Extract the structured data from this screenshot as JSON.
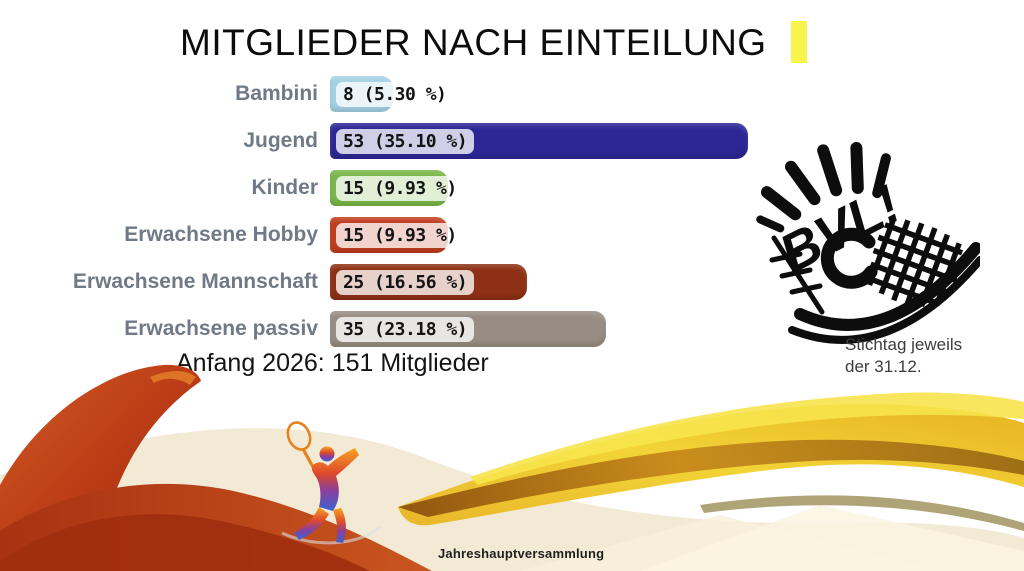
{
  "slide": {
    "title": "MITGLIEDER NACH EINTEILUNG",
    "caret_color": "#f7f549",
    "summary": "Anfang 2026: 151 Mitglieder",
    "note_line1": "Stichtag jeweils",
    "note_line2": "der 31.12.",
    "footer": "Jahreshauptversammlung"
  },
  "logo": {
    "name": "BVL badminton club logo",
    "text": "BVL!",
    "color": "#0d0d0d"
  },
  "chart_data": {
    "type": "bar",
    "orientation": "horizontal",
    "title": "MITGLIEDER NACH EINTEILUNG",
    "total_label": "Anfang 2026: 151 Mitglieder",
    "total_members": 151,
    "xlim": [
      0,
      53
    ],
    "grid": false,
    "legend": false,
    "categories": [
      "Bambini",
      "Jugend",
      "Kinder",
      "Erwachsene Hobby",
      "Erwachsene Mannschaft",
      "Erwachsene passiv"
    ],
    "values": [
      8,
      53,
      15,
      15,
      25,
      35
    ],
    "percents": [
      5.3,
      35.1,
      9.93,
      9.93,
      16.56,
      23.18
    ],
    "rows": [
      {
        "label": "Bambini",
        "value": 8,
        "value_label": "8 (5.30 %)",
        "color": "#a4d2e4"
      },
      {
        "label": "Jugend",
        "value": 53,
        "value_label": "53 (35.10 %)",
        "color": "#2c2795"
      },
      {
        "label": "Kinder",
        "value": 15,
        "value_label": "15 (9.93 %)",
        "color": "#79b748"
      },
      {
        "label": "Erwachsene Hobby",
        "value": 15,
        "value_label": "15 (9.93 %)",
        "color": "#c03d1f"
      },
      {
        "label": "Erwachsene Mannschaft",
        "value": 25,
        "value_label": "25 (16.56 %)",
        "color": "#8e3015"
      },
      {
        "label": "Erwachsene passiv",
        "value": 35,
        "value_label": "35 (23.18 %)",
        "color": "#978d82"
      }
    ]
  }
}
